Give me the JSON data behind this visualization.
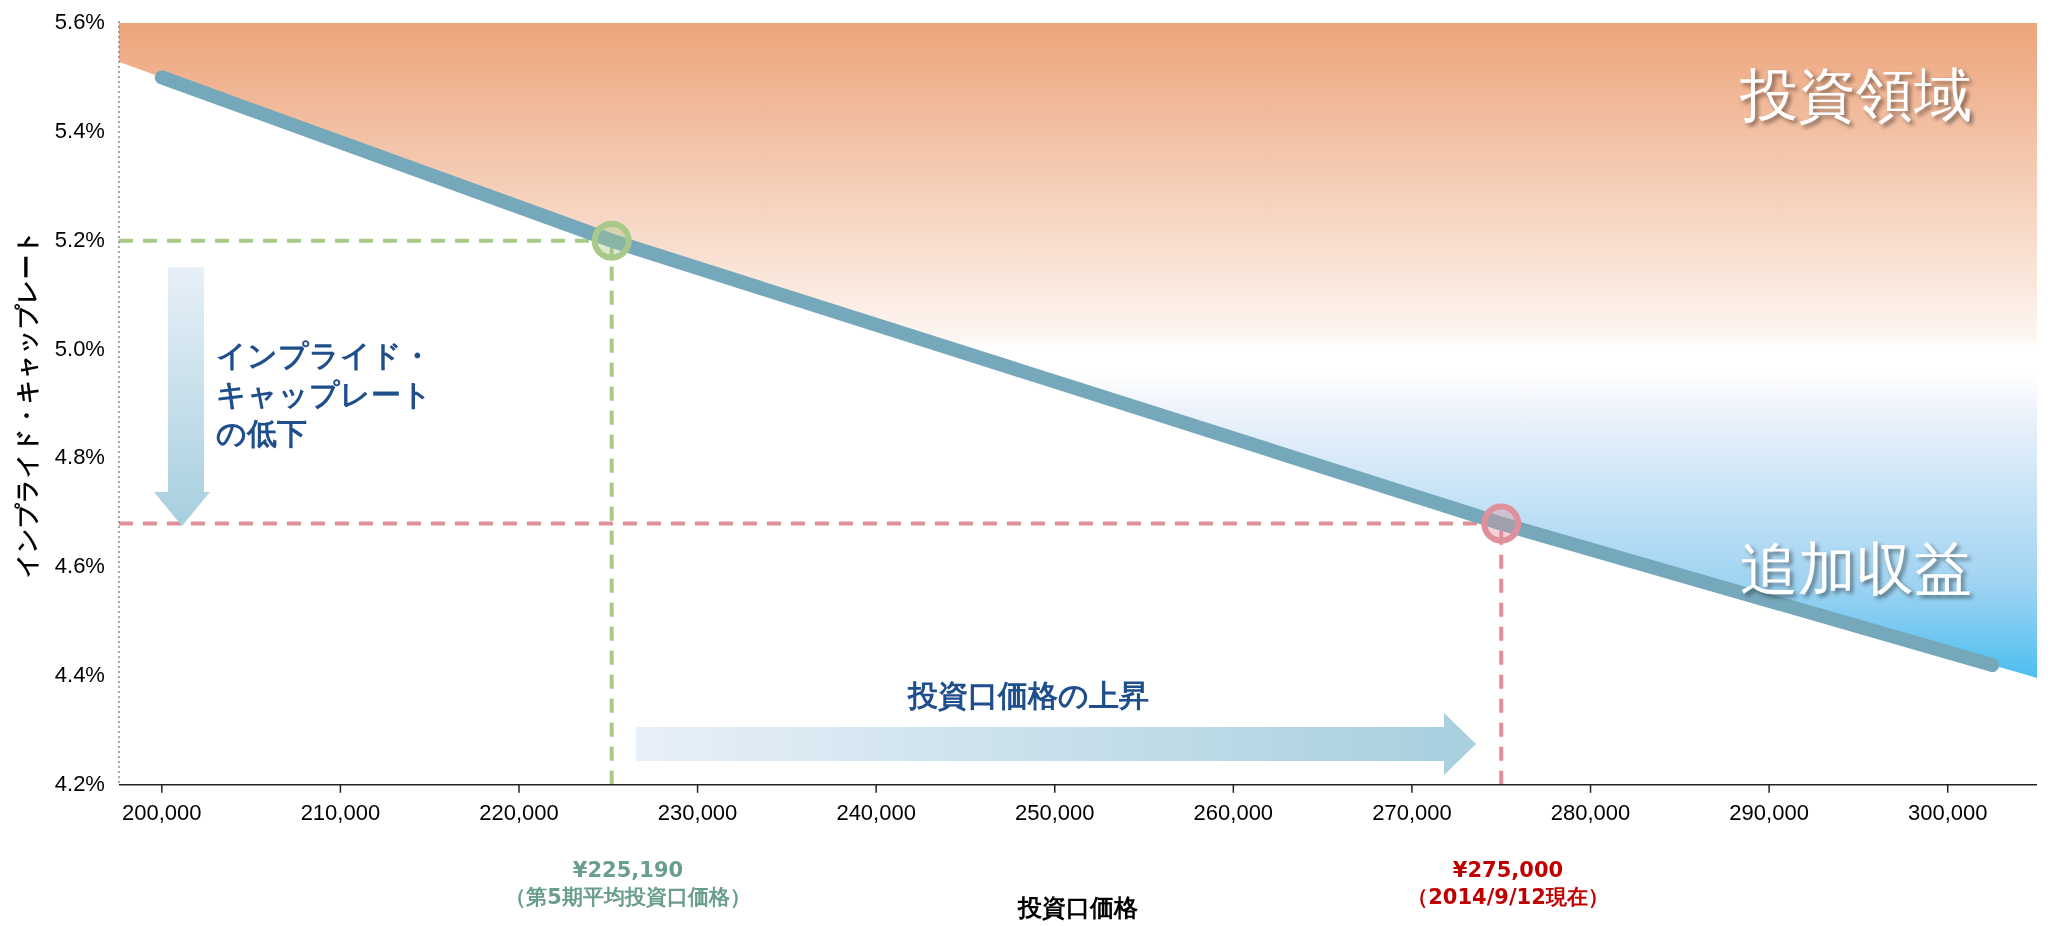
{
  "chart_data": {
    "type": "line",
    "xlabel": "投資口価格",
    "ylabel": "インプライド・キャップレート",
    "x": [
      200000,
      225190,
      275000,
      302500
    ],
    "series": [
      {
        "color": "#75a8bb",
        "values": [
          5.5,
          5.2,
          4.68,
          4.42
        ],
        "marker": "none"
      },
      {
        "type": "scatter",
        "x": [
          225190
        ],
        "values": [
          5.2
        ],
        "color": "#a8c98a",
        "marker": "circle"
      },
      {
        "type": "scatter",
        "x": [
          275000
        ],
        "values": [
          4.68
        ],
        "color": "#e0909a",
        "marker": "circle"
      }
    ],
    "xlim": [
      197600,
      305000
    ],
    "xticks": [
      {
        "value": 200000,
        "label": "200,000"
      },
      {
        "value": 210000,
        "label": "210,000"
      },
      {
        "value": 220000,
        "label": "220,000"
      },
      {
        "value": 230000,
        "label": "230,000"
      },
      {
        "value": 240000,
        "label": "240,000"
      },
      {
        "value": 250000,
        "label": "250,000"
      },
      {
        "value": 260000,
        "label": "260,000"
      },
      {
        "value": 270000,
        "label": "270,000"
      },
      {
        "value": 280000,
        "label": "280,000"
      },
      {
        "value": 290000,
        "label": "290,000"
      },
      {
        "value": 300000,
        "label": "300,000"
      }
    ],
    "ylim": [
      4.2,
      5.6
    ],
    "yticks": [
      {
        "value": 4.2,
        "label": "4.2%"
      },
      {
        "value": 4.4,
        "label": "4.4%"
      },
      {
        "value": 4.6,
        "label": "4.6%"
      },
      {
        "value": 4.8,
        "label": "4.8%"
      },
      {
        "value": 5.0,
        "label": "5.0%"
      },
      {
        "value": 5.2,
        "label": "5.2%"
      },
      {
        "value": 5.4,
        "label": "5.4%"
      },
      {
        "value": 5.6,
        "label": "5.6%"
      }
    ],
    "ref_lines": [
      {
        "axis": "x",
        "value": 225190,
        "color": "#a8c98a",
        "line_style": "dashed"
      },
      {
        "axis": "y",
        "value": 5.2,
        "color": "#a8c98a",
        "line_style": "dashed"
      },
      {
        "axis": "x",
        "value": 275000,
        "color": "#e0909a",
        "line_style": "dashed"
      },
      {
        "axis": "y",
        "value": 4.68,
        "color": "#e0909a",
        "line_style": "dashed"
      }
    ],
    "annotations": [
      "¥225,190",
      "（第5期平均投資口価格）",
      "¥275,000",
      "（2014/9/12現在）",
      "投資領域",
      "追加収益",
      "インプライド・",
      "キャップレート",
      "の低下",
      "投資口価格の上昇"
    ],
    "grid": false,
    "legend": false,
    "line_style": "solid"
  }
}
